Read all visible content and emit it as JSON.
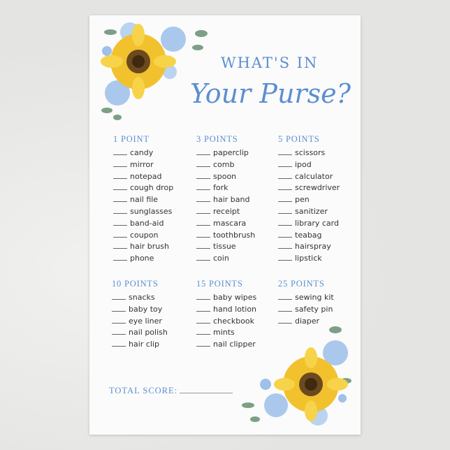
{
  "title": {
    "line1": "WHAT'S IN",
    "line2": "Your Purse?"
  },
  "groups": [
    {
      "header": "1 POINT",
      "items": [
        "candy",
        "mirror",
        "notepad",
        "cough drop",
        "nail file",
        "sunglasses",
        "band-aid",
        "coupon",
        "hair brush",
        "phone"
      ]
    },
    {
      "header": "3 POINTS",
      "items": [
        "paperclip",
        "comb",
        "spoon",
        "fork",
        "hair band",
        "receipt",
        "mascara",
        "toothbrush",
        "tissue",
        "coin"
      ]
    },
    {
      "header": "5 POINTS",
      "items": [
        "scissors",
        "ipod",
        "calculator",
        "screwdriver",
        "pen",
        "sanitizer",
        "library card",
        "teabag",
        "hairspray",
        "lipstick"
      ]
    },
    {
      "header": "10 POINTS",
      "items": [
        "snacks",
        "baby toy",
        "eye liner",
        "nail polish",
        "hair clip"
      ]
    },
    {
      "header": "15 POINTS",
      "items": [
        "baby wipes",
        "hand lotion",
        "checkbook",
        "mints",
        "nail clipper"
      ]
    },
    {
      "header": "25 POINTS",
      "items": [
        "sewing kit",
        "safety pin",
        "diaper"
      ]
    }
  ],
  "total": {
    "label": "TOTAL SCORE:"
  },
  "colors": {
    "accent": "#5b8fd0",
    "sunflower": "#f2c12e",
    "rose": "#a9c8ec"
  }
}
